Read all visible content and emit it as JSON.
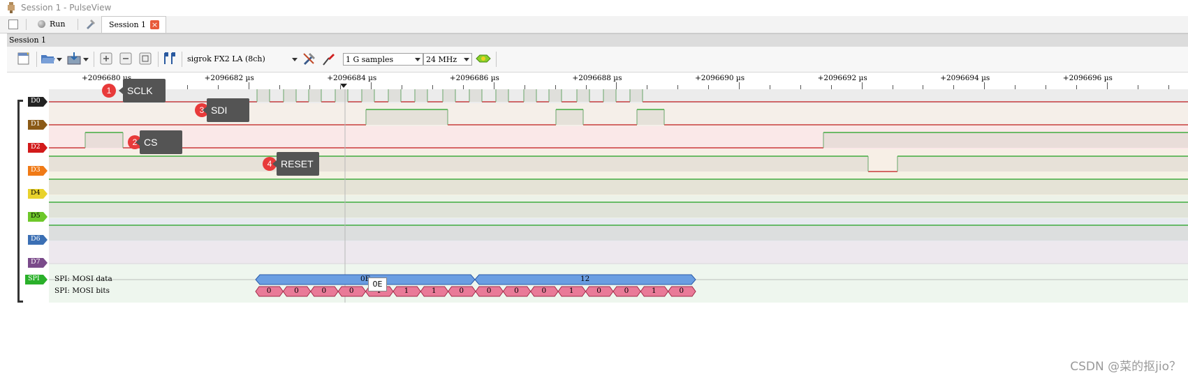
{
  "window": {
    "title": "Session 1 - PulseView"
  },
  "tabs": {
    "run_label": "Run",
    "session_tab_label": "Session 1"
  },
  "session_bar": {
    "label": "Session 1"
  },
  "toolbar": {
    "device": "sigrok FX2 LA (8ch)",
    "samples": "1 G samples",
    "samplerate": "24 MHz"
  },
  "ruler": {
    "tick_labels": [
      "+2096680 µs",
      "+2096682 µs",
      "+2096684 µs",
      "+2096686 µs",
      "+2096688 µs",
      "+2096690 µs",
      "+2096692 µs",
      "+2096694 µs",
      "+2096696 µs"
    ]
  },
  "channels": [
    {
      "name": "D0",
      "color": "#222222"
    },
    {
      "name": "D1",
      "color": "#8b5a16"
    },
    {
      "name": "D2",
      "color": "#d21a1a"
    },
    {
      "name": "D3",
      "color": "#f07a16"
    },
    {
      "name": "D4",
      "color": "#e9d22c"
    },
    {
      "name": "D5",
      "color": "#6ec82a"
    },
    {
      "name": "D6",
      "color": "#3b6fb4"
    },
    {
      "name": "D7",
      "color": "#7a4a8a"
    }
  ],
  "decoder": {
    "name": "SPI",
    "rows": [
      "SPI: MOSI data",
      "SPI: MOSI bits"
    ],
    "bytes": [
      "0E",
      "12"
    ],
    "bits": [
      "0",
      "0",
      "0",
      "0",
      "1",
      "1",
      "1",
      "0",
      "0",
      "0",
      "0",
      "1",
      "0",
      "0",
      "1",
      "0"
    ],
    "hover_value": "0E"
  },
  "callouts": [
    {
      "num": "1",
      "text": "SCLK"
    },
    {
      "num": "3",
      "text": "SDI"
    },
    {
      "num": "2",
      "text": "CS"
    },
    {
      "num": "4",
      "text": "RESET"
    }
  ],
  "watermark": "CSDN @菜的抠jio？"
}
